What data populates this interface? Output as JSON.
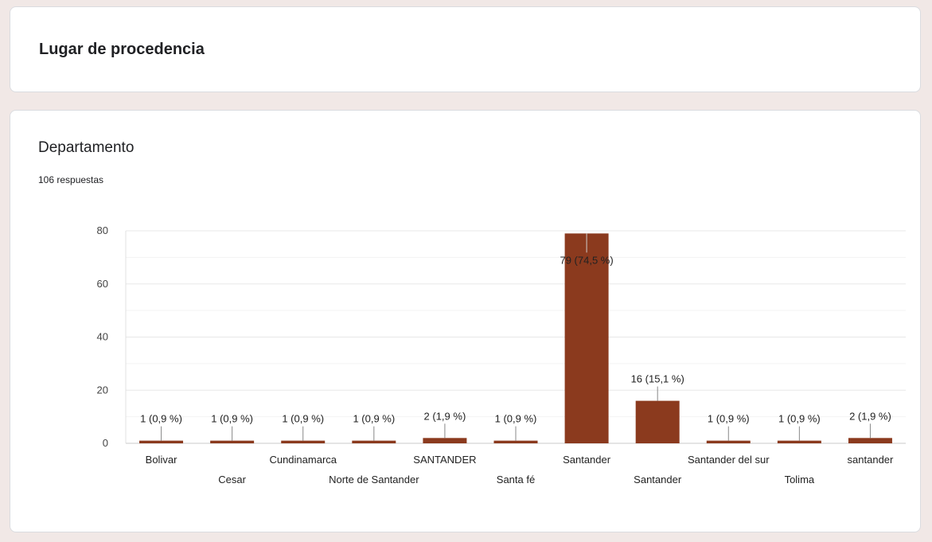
{
  "section": {
    "title": "Lugar de procedencia"
  },
  "question": {
    "title": "Departamento",
    "response_count": "106 respuestas"
  },
  "colors": {
    "bar": "#8b3a1e",
    "grid": "#e8e8e8",
    "axis": "#bdbdbd",
    "page_bg": "#f1e8e6"
  },
  "chart_data": {
    "type": "bar",
    "categories": [
      "Bolivar",
      "Cesar",
      "Cundinamarca",
      "Norte de Santander",
      "SANTANDER",
      "Santa fé",
      "Santander",
      "Santander",
      "Santander del sur",
      "Tolima",
      "santander"
    ],
    "values": [
      1,
      1,
      1,
      1,
      2,
      1,
      79,
      16,
      1,
      1,
      2
    ],
    "data_labels": [
      "1 (0,9 %)",
      "1 (0,9 %)",
      "1 (0,9 %)",
      "1 (0,9 %)",
      "2 (1,9 %)",
      "1 (0,9 %)",
      "79 (74,5 %)",
      "16 (15,1 %)",
      "1 (0,9 %)",
      "1 (0,9 %)",
      "2 (1,9 %)"
    ],
    "y_ticks": [
      "0",
      "20",
      "40",
      "60",
      "80"
    ],
    "ylim": [
      0,
      80
    ],
    "grid": true,
    "legend": "none"
  }
}
